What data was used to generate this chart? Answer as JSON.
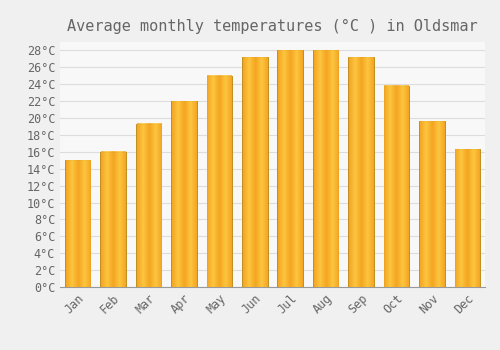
{
  "title": "Average monthly temperatures (°C ) in Oldsmar",
  "months": [
    "Jan",
    "Feb",
    "Mar",
    "Apr",
    "May",
    "Jun",
    "Jul",
    "Aug",
    "Sep",
    "Oct",
    "Nov",
    "Dec"
  ],
  "values": [
    15.0,
    16.0,
    19.3,
    22.0,
    25.0,
    27.2,
    28.0,
    28.0,
    27.2,
    23.8,
    19.6,
    16.3
  ],
  "bar_color_center": "#FFCC44",
  "bar_color_edge": "#F5A623",
  "bar_border_color": "#B8860B",
  "background_color": "#F0F0F0",
  "plot_bg_color": "#F8F8F8",
  "grid_color": "#DDDDDD",
  "text_color": "#666666",
  "ylim": [
    0,
    29.0
  ],
  "title_fontsize": 11,
  "tick_fontsize": 8.5
}
